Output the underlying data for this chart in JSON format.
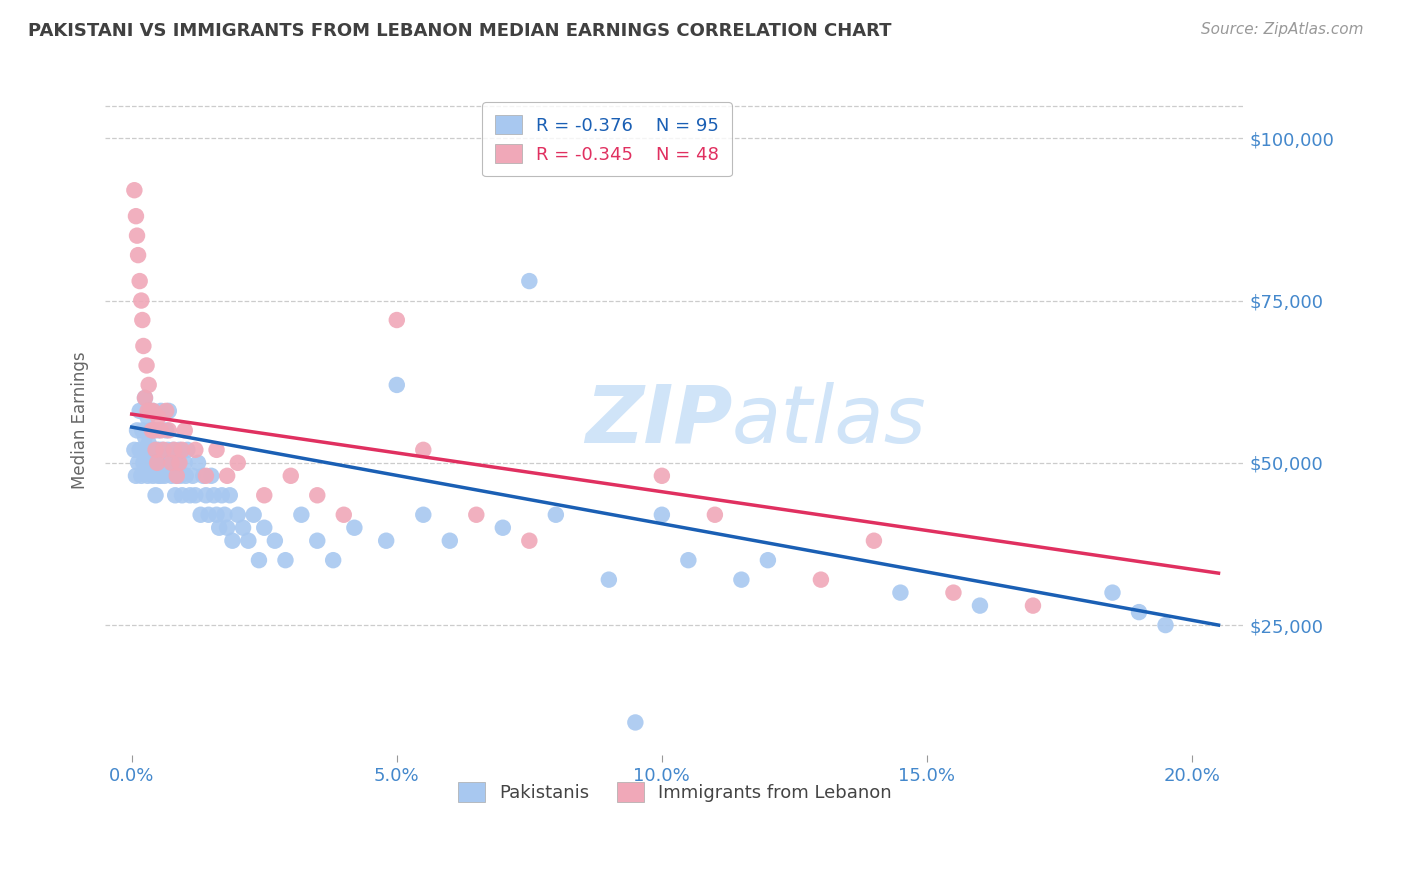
{
  "title": "PAKISTANI VS IMMIGRANTS FROM LEBANON MEDIAN EARNINGS CORRELATION CHART",
  "source": "Source: ZipAtlas.com",
  "xlabel_ticks": [
    "0.0%",
    "5.0%",
    "10.0%",
    "15.0%",
    "20.0%"
  ],
  "xlabel_vals": [
    0.0,
    5.0,
    10.0,
    15.0,
    20.0
  ],
  "ylabel_ticks": [
    "$25,000",
    "$50,000",
    "$75,000",
    "$100,000"
  ],
  "ylabel_vals": [
    25000,
    50000,
    75000,
    100000
  ],
  "xmin": -0.5,
  "xmax": 21.0,
  "ymin": 5000,
  "ymax": 108000,
  "legend_r1": "-0.376",
  "legend_n1": "95",
  "legend_r2": "-0.345",
  "legend_n2": "48",
  "blue_color": "#a8c8f0",
  "pink_color": "#f0a8b8",
  "line_blue": "#1a5fb4",
  "line_pink": "#e03060",
  "title_color": "#404040",
  "axis_label_color": "#4488cc",
  "watermark_color": "#d0e4f8",
  "pakistanis_x": [
    0.05,
    0.08,
    0.1,
    0.12,
    0.15,
    0.15,
    0.18,
    0.2,
    0.22,
    0.25,
    0.25,
    0.28,
    0.3,
    0.3,
    0.32,
    0.35,
    0.35,
    0.38,
    0.4,
    0.4,
    0.42,
    0.45,
    0.45,
    0.48,
    0.5,
    0.5,
    0.52,
    0.55,
    0.55,
    0.58,
    0.6,
    0.62,
    0.65,
    0.68,
    0.7,
    0.72,
    0.75,
    0.78,
    0.8,
    0.82,
    0.85,
    0.88,
    0.9,
    0.92,
    0.95,
    1.0,
    1.02,
    1.05,
    1.1,
    1.15,
    1.2,
    1.25,
    1.3,
    1.35,
    1.4,
    1.45,
    1.5,
    1.55,
    1.6,
    1.65,
    1.7,
    1.75,
    1.8,
    1.85,
    1.9,
    2.0,
    2.1,
    2.2,
    2.3,
    2.4,
    2.5,
    2.7,
    2.9,
    3.2,
    3.5,
    3.8,
    4.2,
    4.8,
    5.0,
    5.5,
    6.0,
    7.0,
    7.5,
    8.0,
    9.0,
    10.0,
    10.5,
    11.5,
    12.0,
    14.5,
    16.0,
    18.5,
    19.0,
    19.5,
    9.5
  ],
  "pakistanis_y": [
    52000,
    48000,
    55000,
    50000,
    58000,
    52000,
    48000,
    55000,
    50000,
    60000,
    54000,
    52000,
    57000,
    48000,
    53000,
    55000,
    50000,
    52000,
    48000,
    58000,
    55000,
    50000,
    45000,
    52000,
    55000,
    48000,
    52000,
    48000,
    58000,
    52000,
    50000,
    48000,
    55000,
    52000,
    58000,
    50000,
    48000,
    52000,
    50000,
    45000,
    48000,
    50000,
    52000,
    48000,
    45000,
    50000,
    48000,
    52000,
    45000,
    48000,
    45000,
    50000,
    42000,
    48000,
    45000,
    42000,
    48000,
    45000,
    42000,
    40000,
    45000,
    42000,
    40000,
    45000,
    38000,
    42000,
    40000,
    38000,
    42000,
    35000,
    40000,
    38000,
    35000,
    42000,
    38000,
    35000,
    40000,
    38000,
    62000,
    42000,
    38000,
    40000,
    78000,
    42000,
    32000,
    42000,
    35000,
    32000,
    35000,
    30000,
    28000,
    30000,
    27000,
    25000,
    10000
  ],
  "lebanon_x": [
    0.05,
    0.08,
    0.1,
    0.12,
    0.15,
    0.18,
    0.2,
    0.22,
    0.25,
    0.28,
    0.3,
    0.32,
    0.35,
    0.38,
    0.4,
    0.42,
    0.45,
    0.48,
    0.5,
    0.55,
    0.6,
    0.65,
    0.7,
    0.75,
    0.8,
    0.85,
    0.9,
    0.95,
    1.0,
    1.2,
    1.4,
    1.6,
    1.8,
    2.0,
    2.5,
    3.0,
    3.5,
    4.0,
    5.0,
    5.5,
    6.5,
    7.5,
    10.0,
    11.0,
    13.0,
    14.0,
    15.5,
    17.0
  ],
  "lebanon_y": [
    92000,
    88000,
    85000,
    82000,
    78000,
    75000,
    72000,
    68000,
    60000,
    65000,
    58000,
    62000,
    58000,
    55000,
    58000,
    55000,
    52000,
    50000,
    57000,
    55000,
    52000,
    58000,
    55000,
    50000,
    52000,
    48000,
    50000,
    52000,
    55000,
    52000,
    48000,
    52000,
    48000,
    50000,
    45000,
    48000,
    45000,
    42000,
    72000,
    52000,
    42000,
    38000,
    48000,
    42000,
    32000,
    38000,
    30000,
    28000
  ]
}
